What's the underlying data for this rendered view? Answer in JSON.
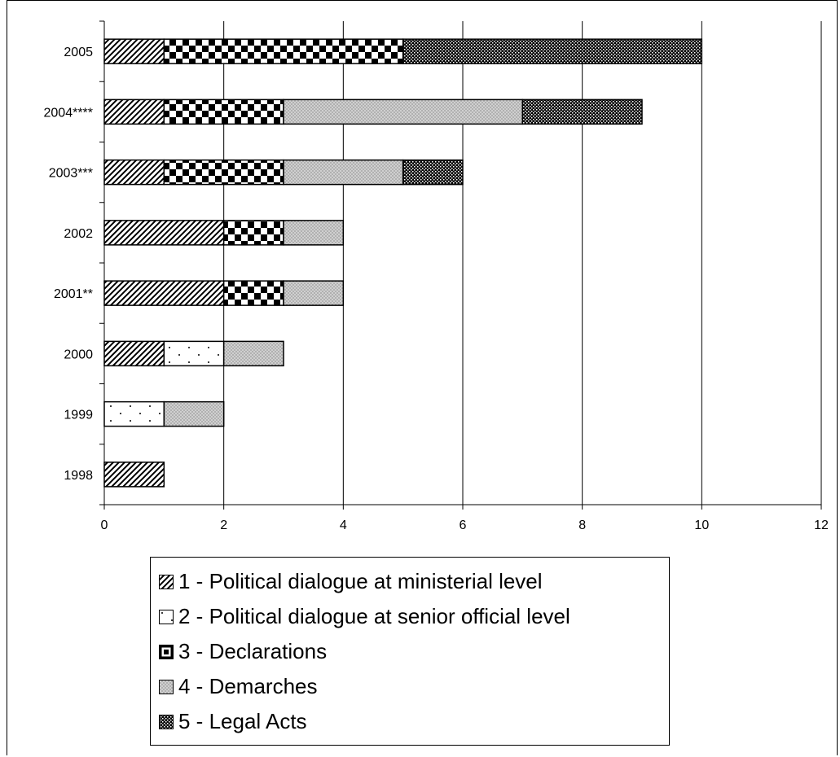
{
  "chart_data": {
    "type": "bar",
    "orientation": "horizontal",
    "stacked": true,
    "categories": [
      "1998",
      "1999",
      "2000",
      "2001**",
      "2002",
      "2003***",
      "2004****",
      "2005"
    ],
    "series": [
      {
        "name": "1 - Political dialogue at ministerial level",
        "values": [
          1,
          0,
          1,
          2,
          2,
          1,
          1,
          1
        ],
        "pattern": "diagonal-hatch"
      },
      {
        "name": "2 - Political dialogue at senior official level",
        "values": [
          0,
          1,
          1,
          0,
          0,
          0,
          0,
          0
        ],
        "pattern": "sparse-dots"
      },
      {
        "name": "3 - Declarations",
        "values": [
          0,
          0,
          0,
          1,
          1,
          2,
          2,
          4
        ],
        "pattern": "checkerboard"
      },
      {
        "name": "4 - Demarches",
        "values": [
          0,
          1,
          1,
          1,
          1,
          2,
          4,
          0
        ],
        "pattern": "gray-crosshatch"
      },
      {
        "name": "5 - Legal Acts",
        "values": [
          0,
          0,
          0,
          0,
          0,
          1,
          2,
          5
        ],
        "pattern": "dense-dots"
      }
    ],
    "xlim": [
      0,
      12
    ],
    "xticks": [
      "0",
      "2",
      "4",
      "6",
      "8",
      "10",
      "12"
    ],
    "grid": "vertical",
    "legend_position": "bottom",
    "colors": {
      "background": "#ffffff",
      "axis": "#000000",
      "gray_fill": "#a8a8a8"
    }
  }
}
